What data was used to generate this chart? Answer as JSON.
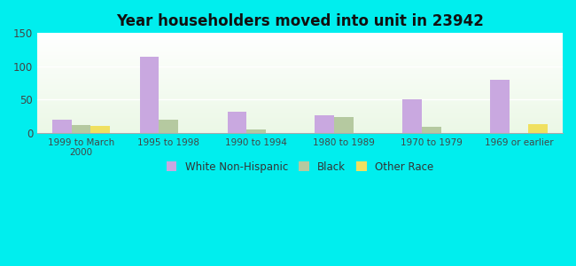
{
  "title": "Year householders moved into unit in 23942",
  "categories": [
    "1999 to March\n2000",
    "1995 to 1998",
    "1990 to 1994",
    "1980 to 1989",
    "1970 to 1979",
    "1969 or earlier"
  ],
  "white_non_hispanic": [
    20,
    114,
    32,
    27,
    50,
    80
  ],
  "black": [
    12,
    20,
    6,
    24,
    9,
    0
  ],
  "other_race": [
    11,
    0,
    0,
    0,
    0,
    13
  ],
  "white_color": "#c9a8e0",
  "black_color": "#b5c9a0",
  "other_color": "#f0e060",
  "background_outer": "#00eeee",
  "ylim": [
    0,
    150
  ],
  "yticks": [
    0,
    50,
    100,
    150
  ],
  "bar_width": 0.22,
  "legend_labels": [
    "White Non-Hispanic",
    "Black",
    "Other Race"
  ]
}
